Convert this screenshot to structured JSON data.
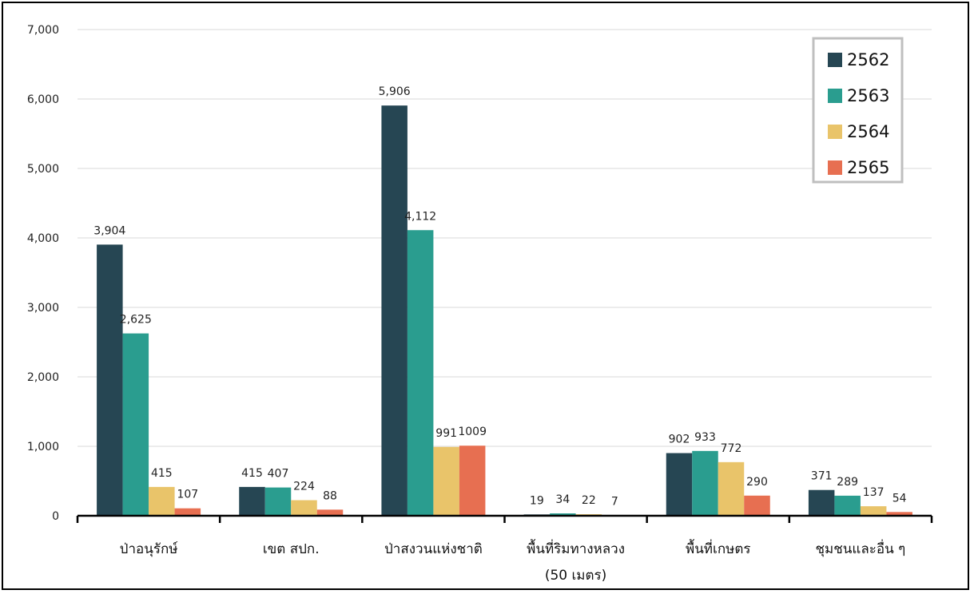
{
  "chart_data": {
    "type": "bar",
    "categories": [
      [
        "ป่าอนุรักษ์"
      ],
      [
        "เขต สปก."
      ],
      [
        "ป่าสงวนแห่งชาติ"
      ],
      [
        "พื้นที่ริมทางหลวง",
        "(50 เมตร)"
      ],
      [
        "พื้นที่เกษตร"
      ],
      [
        "ชุมชนและอื่น ๆ"
      ]
    ],
    "series": [
      {
        "name": "2562",
        "color": "#264653",
        "values": [
          3904,
          415,
          5906,
          19,
          902,
          371
        ],
        "labels": [
          "3,904",
          "415",
          "5,906",
          "19",
          "902",
          "371"
        ]
      },
      {
        "name": "2563",
        "color": "#2a9d8f",
        "values": [
          2625,
          407,
          4112,
          34,
          933,
          289
        ],
        "labels": [
          "2,625",
          "407",
          "4,112",
          "34",
          "933",
          "289"
        ]
      },
      {
        "name": "2564",
        "color": "#e9c46a",
        "values": [
          415,
          224,
          991,
          22,
          772,
          137
        ],
        "labels": [
          "415",
          "224",
          "991",
          "22",
          "772",
          "137"
        ]
      },
      {
        "name": "2565",
        "color": "#e76f51",
        "values": [
          107,
          88,
          1009,
          7,
          290,
          54
        ],
        "labels": [
          "107",
          "88",
          "1009",
          "7",
          "290",
          "54"
        ]
      }
    ],
    "yticks": [
      "0",
      "1,000",
      "2,000",
      "3,000",
      "4,000",
      "5,000",
      "6,000",
      "7,000"
    ],
    "ylim": [
      0,
      7000
    ],
    "grid": true,
    "legend_position": "top-right"
  }
}
